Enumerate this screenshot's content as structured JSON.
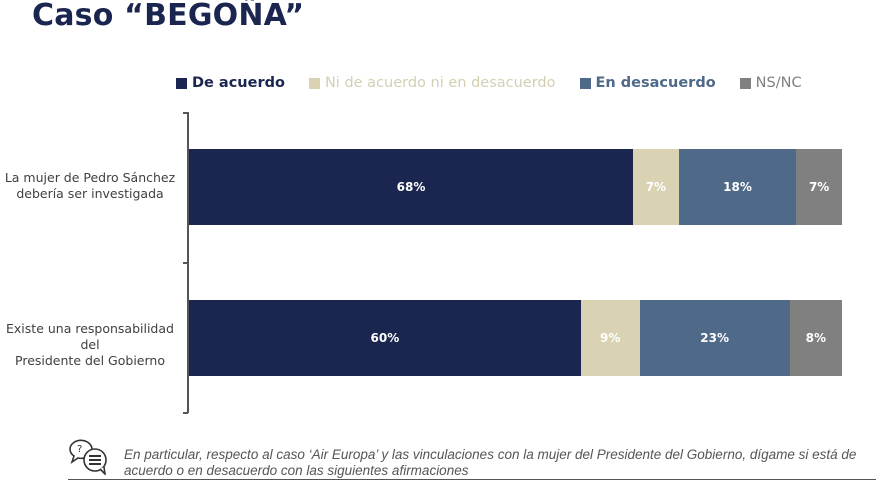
{
  "header": {
    "title": "Caso “BEGOÑA”"
  },
  "footer": {
    "question_text": "En particular, respecto al caso ‘Air Europa’ y las vinculaciones con la mujer del Presidente del Gobierno, dígame si está de acuerdo o en desacuerdo con las siguientes afirmaciones",
    "icon": "question-chat-icon"
  },
  "chart_data": {
    "type": "bar",
    "orientation": "horizontal",
    "stacked": true,
    "title": "Caso “BEGOÑA”",
    "xlabel": "",
    "ylabel": "",
    "xlim": [
      0,
      100
    ],
    "grid": false,
    "legend_position": "top",
    "categories": [
      "La mujer de Pedro Sánchez debería ser investigada",
      "Existe una responsabilidad del Presidente del Gobierno"
    ],
    "category_lines": [
      [
        "La mujer de Pedro Sánchez",
        "debería ser investigada"
      ],
      [
        "Existe una responsabilidad del",
        "Presidente del Gobierno"
      ]
    ],
    "series": [
      {
        "name": "De acuerdo",
        "color": "#1b2650",
        "legend_text_color": "#1b2650",
        "values": [
          68,
          60
        ],
        "labels": [
          "68%",
          "60%"
        ]
      },
      {
        "name": "Ni de acuerdo ni en desacuerdo",
        "color": "#d9d3b4",
        "legend_text_color": "#d4cfb3",
        "values": [
          7,
          9
        ],
        "labels": [
          "7%",
          "9%"
        ]
      },
      {
        "name": "En desacuerdo",
        "color": "#4f6a88",
        "legend_text_color": "#4f6a88",
        "values": [
          18,
          23
        ],
        "labels": [
          "18%",
          "23%"
        ]
      },
      {
        "name": "NS/NC",
        "color": "#808080",
        "legend_text_color": "#808080",
        "values": [
          7,
          8
        ],
        "labels": [
          "7%",
          "8%"
        ]
      }
    ]
  }
}
